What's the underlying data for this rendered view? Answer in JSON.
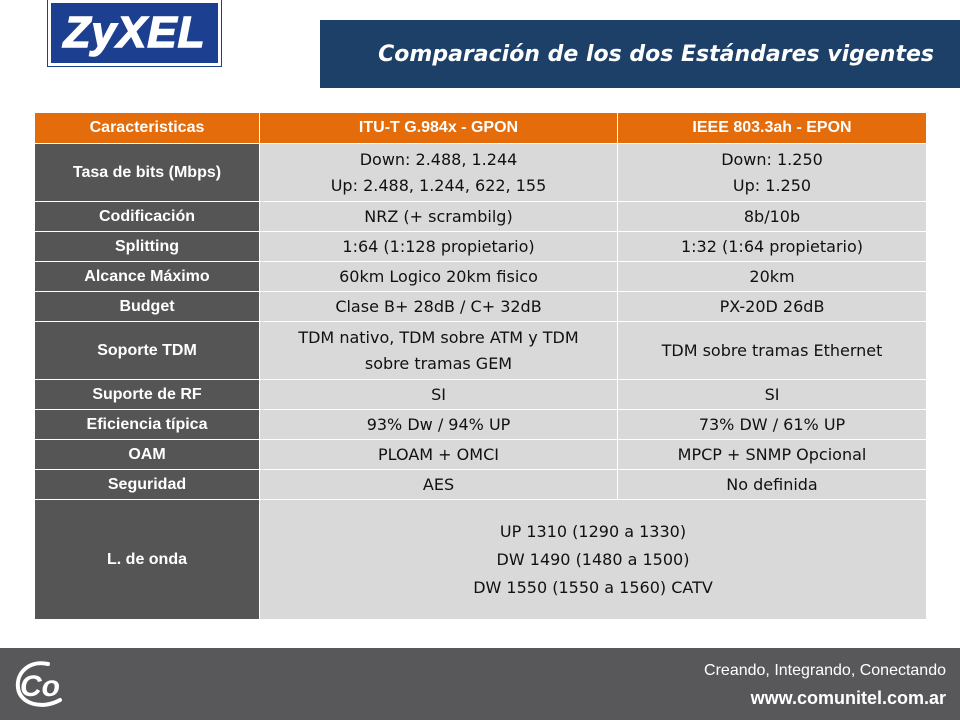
{
  "header": {
    "logo_text": "ZyXEL",
    "title": "Comparación de los dos Estándares vigentes"
  },
  "colors": {
    "header_orange": "#e46c0a",
    "row_head_gray": "#555555",
    "cell_gray": "#d9d9d9",
    "title_navy": "#1d4069",
    "footer_gray": "#58585a"
  },
  "table": {
    "headers": [
      "Caracteristicas",
      "ITU-T G.984x - GPON",
      "IEEE 803.3ah -  EPON"
    ],
    "rows": [
      {
        "label": "Tasa de bits (Mbps)",
        "gpon": [
          "Down: 2.488, 1.244",
          "Up: 2.488, 1.244, 622, 155"
        ],
        "epon": [
          "Down: 1.250",
          "Up: 1.250"
        ]
      },
      {
        "label": "Codificación",
        "gpon": "NRZ (+ scrambilg)",
        "epon": "8b/10b"
      },
      {
        "label": "Splitting",
        "gpon": "1:64 (1:128 propietario)",
        "epon": "1:32 (1:64 propietario)"
      },
      {
        "label": "Alcance Máximo",
        "gpon": "60km Logico 20km fisico",
        "epon": "20km"
      },
      {
        "label": "Budget",
        "gpon": "Clase B+ 28dB / C+ 32dB",
        "epon": "PX-20D 26dB"
      },
      {
        "label": "Soporte TDM",
        "gpon": [
          "TDM nativo, TDM sobre ATM y TDM",
          "sobre tramas GEM"
        ],
        "epon": "TDM sobre tramas Ethernet"
      },
      {
        "label": "Suporte de RF",
        "gpon": "SI",
        "epon": "SI"
      },
      {
        "label": "Eficiencia típica",
        "gpon": "93% Dw / 94% UP",
        "epon": "73% DW / 61% UP"
      },
      {
        "label": "OAM",
        "gpon": "PLOAM + OMCI",
        "epon": "MPCP + SNMP Opcional"
      },
      {
        "label": "Seguridad",
        "gpon": "AES",
        "epon": "No definida"
      },
      {
        "label": "L. de onda",
        "shared": [
          "UP 1310 (1290 a 1330)",
          "DW 1490 (1480 a 1500)",
          "DW 1550 (1550 a 1560) CATV"
        ]
      }
    ]
  },
  "footer": {
    "logo_text": "Co",
    "slogan": "Creando, Integrando, Conectando",
    "website": "www.comunitel.com.ar"
  }
}
